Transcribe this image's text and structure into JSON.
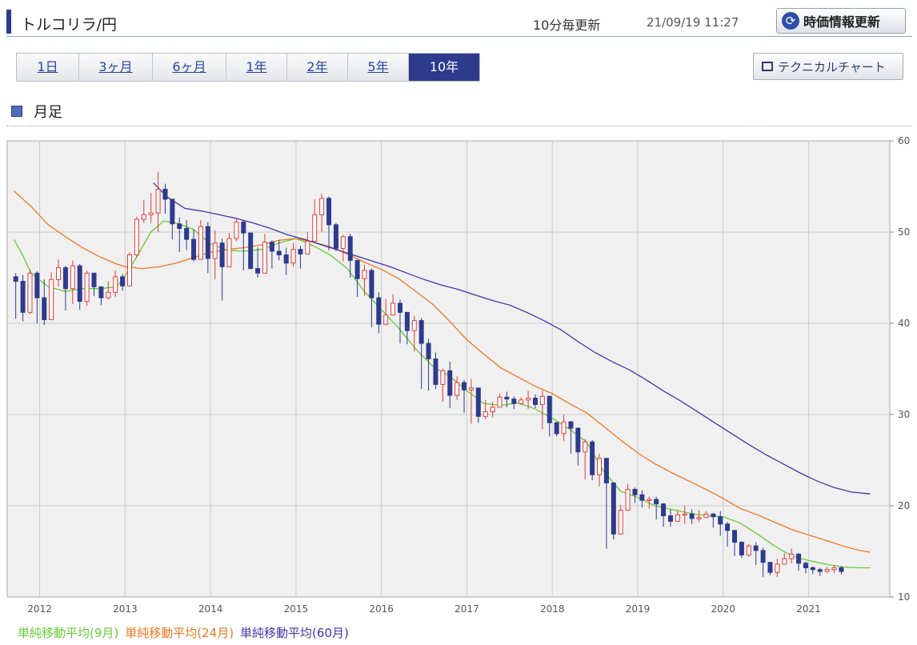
{
  "header": {
    "title": "トルコリラ/円",
    "update_label": "10分毎更新",
    "timestamp": "21/09/19 11:27",
    "refresh_label": "時価情報更新"
  },
  "tabs": [
    {
      "label": "1日",
      "active": false
    },
    {
      "label": "3ヶ月",
      "active": false
    },
    {
      "label": "6ヶ月",
      "active": false
    },
    {
      "label": "1年",
      "active": false
    },
    {
      "label": "2年",
      "active": false
    },
    {
      "label": "5年",
      "active": false
    },
    {
      "label": "10年",
      "active": true
    }
  ],
  "technical_button_label": "テクニカルチャート",
  "section_title": "月足",
  "colors": {
    "accent": "#2c3a8c",
    "up_candle": "#e03c3c",
    "down_candle": "#2e3a8c",
    "ma9": "#66cc33",
    "ma24": "#ee7722",
    "ma60": "#4433aa",
    "grid": "#cccccc",
    "plot_bg": "#f0f0f0"
  },
  "legend": [
    {
      "label": "単純移動平均(9月)",
      "color": "#66cc33"
    },
    {
      "label": "単純移動平均(24月)",
      "color": "#ee7722"
    },
    {
      "label": "単純移動平均(60月)",
      "color": "#4433aa"
    }
  ],
  "chart_data": {
    "type": "candlestick",
    "x_tick_labels": [
      "2012",
      "2013",
      "2014",
      "2015",
      "2016",
      "2017",
      "2018",
      "2019",
      "2020",
      "2021"
    ],
    "x_tick_positions": [
      2012,
      2013,
      2014,
      2015,
      2016,
      2017,
      2018,
      2019,
      2020,
      2021
    ],
    "xlim": [
      2011.62,
      2021.95
    ],
    "ylim": [
      10,
      60
    ],
    "y_ticks": [
      10,
      20,
      30,
      40,
      50,
      60
    ],
    "y_axis_side": "right",
    "grid": true,
    "legend_position": "bottom",
    "candles": {
      "start_year": 2011.72,
      "step_years": 0.0833,
      "close": [
        44.6,
        41.2,
        45.5,
        42.8,
        40.4,
        44.8,
        46.1,
        43.8,
        46.3,
        42.4,
        45.5,
        44.0,
        42.8,
        43.4,
        45.1,
        44.1,
        47.5,
        51.4,
        51.9,
        52.1,
        54.7,
        53.6,
        50.9,
        50.4,
        49.2,
        47.0,
        50.6,
        47.1,
        48.8,
        46.2,
        49.3,
        51.1,
        49.9,
        46.0,
        45.5,
        48.9,
        47.9,
        47.5,
        46.6,
        48.1,
        47.6,
        49.0,
        51.9,
        53.7,
        50.8,
        48.2,
        49.5,
        46.9,
        44.9,
        45.8,
        42.8,
        39.9,
        40.9,
        42.2,
        41.2,
        39.2,
        40.3,
        37.8,
        36.1,
        33.3,
        34.8,
        32.1,
        33.5,
        32.7,
        32.9,
        29.8,
        30.3,
        30.8,
        31.9,
        31.7,
        31.2,
        31.6,
        31.8,
        31.1,
        32.0,
        29.1,
        27.9,
        29.2,
        28.5,
        25.9,
        27.0,
        23.4,
        25.2,
        22.5,
        16.9,
        19.5,
        21.8,
        21.2,
        20.6,
        20.7,
        20.2,
        18.9,
        18.3,
        19.0,
        19.1,
        18.6,
        18.7,
        19.1,
        18.8,
        18.0,
        17.3,
        16.0,
        14.6,
        15.6,
        15.1,
        13.8,
        12.7,
        13.6,
        14.2,
        14.7,
        13.7,
        13.2,
        13.0,
        12.8,
        13.0,
        13.2,
        12.8
      ],
      "low": [
        40.5,
        40.2,
        41.0,
        40.0,
        39.8,
        40.5,
        44.0,
        41.4,
        42.1,
        41.5,
        41.9,
        43.0,
        42.0,
        42.6,
        42.9,
        43.6,
        44.2,
        47.2,
        51.0,
        51.0,
        50.0,
        52.0,
        49.2,
        47.8,
        48.0,
        46.8,
        47.0,
        45.5,
        44.8,
        42.5,
        47.9,
        49.0,
        45.8,
        46.0,
        45.0,
        47.5,
        46.0,
        46.9,
        45.3,
        46.2,
        46.0,
        48.4,
        50.6,
        50.0,
        48.0,
        47.9,
        46.8,
        45.0,
        42.9,
        43.0,
        39.6,
        38.9,
        39.8,
        41.0,
        37.8,
        37.7,
        36.9,
        32.8,
        32.6,
        32.8,
        31.4,
        30.7,
        31.6,
        30.2,
        29.0,
        29.1,
        29.5,
        29.7,
        31.0,
        30.8,
        30.6,
        31.0,
        30.6,
        30.7,
        28.4,
        27.6,
        27.6,
        27.1,
        25.7,
        24.4,
        22.9,
        22.8,
        22.1,
        15.3,
        16.3,
        18.4,
        20.0,
        20.3,
        19.8,
        19.7,
        18.5,
        17.7,
        17.7,
        18.7,
        18.0,
        18.0,
        18.2,
        18.7,
        17.6,
        16.7,
        15.5,
        14.5,
        14.3,
        14.4,
        13.5,
        12.2,
        12.4,
        12.2,
        14.0,
        13.7,
        12.9,
        12.6,
        12.5,
        12.3,
        12.6,
        12.6,
        12.5
      ],
      "high": [
        45.5,
        45.3,
        45.9,
        45.7,
        44.8,
        45.6,
        47.0,
        46.3,
        46.9,
        46.5,
        45.8,
        45.3,
        44.0,
        44.6,
        45.8,
        45.4,
        47.8,
        51.7,
        53.5,
        54.3,
        56.6,
        55.3,
        53.4,
        51.6,
        51.3,
        50.3,
        51.3,
        51.1,
        50.2,
        49.3,
        49.9,
        51.5,
        51.3,
        49.0,
        48.3,
        49.8,
        49.1,
        49.1,
        48.3,
        48.8,
        48.5,
        50.0,
        53.6,
        54.2,
        53.9,
        51.0,
        49.7,
        49.8,
        46.7,
        46.4,
        46.0,
        43.4,
        42.7,
        43.2,
        42.6,
        40.7,
        40.8,
        40.6,
        38.3,
        36.8,
        35.0,
        35.8,
        34.2,
        33.8,
        33.9,
        32.4,
        31.6,
        31.4,
        32.3,
        32.5,
        32.0,
        31.9,
        32.6,
        32.2,
        32.6,
        31.7,
        29.2,
        30.0,
        29.3,
        28.6,
        27.3,
        27.2,
        25.7,
        25.0,
        20.1,
        20.1,
        22.4,
        22.0,
        21.7,
        21.0,
        21.0,
        20.3,
        19.6,
        19.4,
        20.0,
        19.6,
        19.5,
        19.4,
        19.2,
        19.4,
        18.2,
        17.3,
        16.1,
        15.8,
        16.0,
        15.4,
        13.8,
        14.2,
        14.8,
        15.3,
        14.8,
        13.9,
        13.4,
        13.2,
        13.3,
        13.5,
        13.4
      ]
    },
    "moving_averages": [
      {
        "name": "単純移動平均(9月)",
        "period": 9,
        "points": [
          [
            2011.7,
            49.2
          ],
          [
            2011.8,
            47.5
          ],
          [
            2011.9,
            45.5
          ],
          [
            2012.1,
            44.0
          ],
          [
            2012.3,
            43.5
          ],
          [
            2012.5,
            43.8
          ],
          [
            2012.7,
            43.8
          ],
          [
            2012.9,
            44.0
          ],
          [
            2013.0,
            45.2
          ],
          [
            2013.15,
            47.5
          ],
          [
            2013.3,
            50.0
          ],
          [
            2013.45,
            51.2
          ],
          [
            2013.6,
            51.0
          ],
          [
            2013.8,
            50.3
          ],
          [
            2014.0,
            48.7
          ],
          [
            2014.2,
            48.0
          ],
          [
            2014.4,
            47.9
          ],
          [
            2014.6,
            48.1
          ],
          [
            2014.8,
            48.8
          ],
          [
            2015.0,
            49.3
          ],
          [
            2015.2,
            48.5
          ],
          [
            2015.4,
            47.5
          ],
          [
            2015.6,
            46.0
          ],
          [
            2015.8,
            43.5
          ],
          [
            2016.0,
            41.5
          ],
          [
            2016.2,
            39.5
          ],
          [
            2016.4,
            37.2
          ],
          [
            2016.6,
            35.3
          ],
          [
            2016.8,
            34.2
          ],
          [
            2017.0,
            32.6
          ],
          [
            2017.2,
            31.2
          ],
          [
            2017.4,
            31.0
          ],
          [
            2017.6,
            31.3
          ],
          [
            2017.8,
            30.6
          ],
          [
            2018.0,
            29.6
          ],
          [
            2018.2,
            28.4
          ],
          [
            2018.4,
            27.0
          ],
          [
            2018.6,
            23.8
          ],
          [
            2018.8,
            21.6
          ],
          [
            2019.0,
            20.9
          ],
          [
            2019.2,
            20.0
          ],
          [
            2019.4,
            19.6
          ],
          [
            2019.6,
            19.2
          ],
          [
            2019.8,
            18.9
          ],
          [
            2020.0,
            18.8
          ],
          [
            2020.2,
            18.1
          ],
          [
            2020.4,
            16.9
          ],
          [
            2020.6,
            15.6
          ],
          [
            2020.8,
            14.5
          ],
          [
            2021.0,
            14.0
          ],
          [
            2021.2,
            13.6
          ],
          [
            2021.4,
            13.3
          ],
          [
            2021.6,
            13.2
          ],
          [
            2021.72,
            13.2
          ]
        ]
      },
      {
        "name": "単純移動平均(24月)",
        "period": 24,
        "points": [
          [
            2011.7,
            54.5
          ],
          [
            2011.9,
            52.8
          ],
          [
            2012.1,
            50.8
          ],
          [
            2012.3,
            49.5
          ],
          [
            2012.5,
            48.3
          ],
          [
            2012.7,
            47.3
          ],
          [
            2012.9,
            46.5
          ],
          [
            2013.0,
            46.2
          ],
          [
            2013.2,
            46.0
          ],
          [
            2013.4,
            46.2
          ],
          [
            2013.6,
            46.6
          ],
          [
            2013.8,
            47.2
          ],
          [
            2014.0,
            47.8
          ],
          [
            2014.2,
            48.1
          ],
          [
            2014.4,
            48.3
          ],
          [
            2014.6,
            48.6
          ],
          [
            2014.8,
            49.1
          ],
          [
            2015.0,
            49.3
          ],
          [
            2015.2,
            48.9
          ],
          [
            2015.4,
            48.4
          ],
          [
            2015.6,
            47.6
          ],
          [
            2015.8,
            46.7
          ],
          [
            2016.0,
            45.9
          ],
          [
            2016.2,
            44.9
          ],
          [
            2016.4,
            43.5
          ],
          [
            2016.6,
            42.1
          ],
          [
            2016.8,
            40.2
          ],
          [
            2017.0,
            38.2
          ],
          [
            2017.2,
            36.6
          ],
          [
            2017.4,
            35.1
          ],
          [
            2017.6,
            34.1
          ],
          [
            2017.8,
            33.1
          ],
          [
            2018.0,
            32.3
          ],
          [
            2018.2,
            31.2
          ],
          [
            2018.4,
            30.2
          ],
          [
            2018.6,
            28.7
          ],
          [
            2018.8,
            27.2
          ],
          [
            2019.0,
            25.8
          ],
          [
            2019.2,
            24.6
          ],
          [
            2019.4,
            23.6
          ],
          [
            2019.6,
            22.7
          ],
          [
            2019.8,
            21.8
          ],
          [
            2020.0,
            20.8
          ],
          [
            2020.2,
            19.7
          ],
          [
            2020.4,
            19.0
          ],
          [
            2020.6,
            18.2
          ],
          [
            2020.8,
            17.4
          ],
          [
            2021.0,
            16.8
          ],
          [
            2021.2,
            16.2
          ],
          [
            2021.4,
            15.6
          ],
          [
            2021.6,
            15.1
          ],
          [
            2021.72,
            14.9
          ]
        ]
      },
      {
        "name": "単純移動平均(60月)",
        "period": 60,
        "points": [
          [
            2013.33,
            55.4
          ],
          [
            2013.5,
            53.8
          ],
          [
            2013.7,
            52.6
          ],
          [
            2013.9,
            52.3
          ],
          [
            2014.1,
            51.9
          ],
          [
            2014.3,
            51.5
          ],
          [
            2014.5,
            51.0
          ],
          [
            2014.7,
            50.4
          ],
          [
            2014.9,
            49.7
          ],
          [
            2015.1,
            49.2
          ],
          [
            2015.3,
            48.6
          ],
          [
            2015.5,
            48.0
          ],
          [
            2015.7,
            47.4
          ],
          [
            2015.9,
            46.8
          ],
          [
            2016.1,
            46.2
          ],
          [
            2016.3,
            45.5
          ],
          [
            2016.5,
            44.8
          ],
          [
            2016.7,
            44.2
          ],
          [
            2016.9,
            43.7
          ],
          [
            2017.1,
            43.1
          ],
          [
            2017.3,
            42.5
          ],
          [
            2017.5,
            42.0
          ],
          [
            2017.7,
            41.2
          ],
          [
            2017.9,
            40.3
          ],
          [
            2018.1,
            39.3
          ],
          [
            2018.3,
            38.0
          ],
          [
            2018.5,
            36.8
          ],
          [
            2018.7,
            35.8
          ],
          [
            2018.9,
            34.9
          ],
          [
            2019.1,
            33.8
          ],
          [
            2019.3,
            32.6
          ],
          [
            2019.5,
            31.5
          ],
          [
            2019.7,
            30.3
          ],
          [
            2019.9,
            29.1
          ],
          [
            2020.1,
            27.9
          ],
          [
            2020.3,
            26.7
          ],
          [
            2020.5,
            25.6
          ],
          [
            2020.7,
            24.6
          ],
          [
            2020.9,
            23.6
          ],
          [
            2021.1,
            22.7
          ],
          [
            2021.3,
            22.0
          ],
          [
            2021.5,
            21.5
          ],
          [
            2021.72,
            21.3
          ]
        ]
      }
    ]
  }
}
